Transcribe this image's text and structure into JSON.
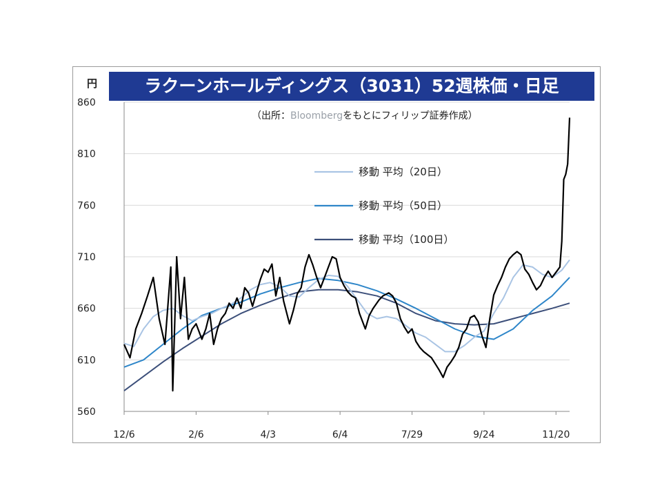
{
  "title": "ラクーンホールディングス（3031）52週株価・日足",
  "unit_label": "円",
  "source": {
    "prefix": "（出所：",
    "name": "Bloomberg",
    "suffix": "をもとにフィリップ証券作成）"
  },
  "colors": {
    "title_bg": "#1f3a93",
    "price": "#000000",
    "ma20": "#a9c4e4",
    "ma50": "#2e86c9",
    "ma100": "#3c4f7a",
    "grid": "#d9d9d9"
  },
  "chart_data": {
    "type": "line",
    "ylim": [
      560,
      860
    ],
    "yticks": [
      "860",
      "810",
      "760",
      "710",
      "660",
      "610",
      "560"
    ],
    "xticks": [
      "12/6",
      "2/6",
      "4/3",
      "6/4",
      "7/29",
      "9/24",
      "11/20"
    ],
    "grid": true,
    "legend_position": "right",
    "series": [
      {
        "name": "",
        "key": "price",
        "values": [
          [
            0,
            625
          ],
          [
            3,
            612
          ],
          [
            6,
            640
          ],
          [
            9,
            655
          ],
          [
            12,
            672
          ],
          [
            15,
            690
          ],
          [
            18,
            650
          ],
          [
            21,
            625
          ],
          [
            24,
            700
          ],
          [
            25,
            580
          ],
          [
            27,
            710
          ],
          [
            29,
            650
          ],
          [
            31,
            690
          ],
          [
            33,
            630
          ],
          [
            35,
            640
          ],
          [
            37,
            645
          ],
          [
            40,
            630
          ],
          [
            42,
            640
          ],
          [
            44,
            655
          ],
          [
            46,
            625
          ],
          [
            48,
            640
          ],
          [
            50,
            650
          ],
          [
            52,
            655
          ],
          [
            54,
            665
          ],
          [
            56,
            660
          ],
          [
            58,
            670
          ],
          [
            60,
            660
          ],
          [
            62,
            680
          ],
          [
            64,
            675
          ],
          [
            66,
            662
          ],
          [
            68,
            675
          ],
          [
            70,
            688
          ],
          [
            72,
            698
          ],
          [
            74,
            695
          ],
          [
            76,
            703
          ],
          [
            78,
            672
          ],
          [
            80,
            690
          ],
          [
            82,
            667
          ],
          [
            85,
            645
          ],
          [
            87,
            658
          ],
          [
            89,
            674
          ],
          [
            91,
            680
          ],
          [
            93,
            700
          ],
          [
            95,
            712
          ],
          [
            97,
            702
          ],
          [
            99,
            690
          ],
          [
            101,
            680
          ],
          [
            103,
            690
          ],
          [
            105,
            700
          ],
          [
            107,
            710
          ],
          [
            109,
            708
          ],
          [
            111,
            690
          ],
          [
            113,
            682
          ],
          [
            115,
            676
          ],
          [
            117,
            672
          ],
          [
            119,
            670
          ],
          [
            121,
            655
          ],
          [
            124,
            640
          ],
          [
            126,
            653
          ],
          [
            128,
            660
          ],
          [
            131,
            668
          ],
          [
            133,
            672
          ],
          [
            136,
            675
          ],
          [
            138,
            672
          ],
          [
            140,
            665
          ],
          [
            142,
            650
          ],
          [
            144,
            642
          ],
          [
            146,
            636
          ],
          [
            148,
            640
          ],
          [
            150,
            628
          ],
          [
            152,
            622
          ],
          [
            154,
            618
          ],
          [
            156,
            615
          ],
          [
            158,
            612
          ],
          [
            160,
            606
          ],
          [
            162,
            600
          ],
          [
            164,
            593
          ],
          [
            166,
            603
          ],
          [
            168,
            608
          ],
          [
            170,
            614
          ],
          [
            172,
            622
          ],
          [
            174,
            635
          ],
          [
            176,
            640
          ],
          [
            178,
            651
          ],
          [
            180,
            653
          ],
          [
            182,
            647
          ],
          [
            184,
            633
          ],
          [
            186,
            622
          ],
          [
            188,
            650
          ],
          [
            190,
            673
          ],
          [
            192,
            682
          ],
          [
            194,
            690
          ],
          [
            196,
            700
          ],
          [
            198,
            708
          ],
          [
            200,
            712
          ],
          [
            202,
            715
          ],
          [
            204,
            712
          ],
          [
            206,
            698
          ],
          [
            208,
            693
          ],
          [
            210,
            685
          ],
          [
            212,
            678
          ],
          [
            214,
            682
          ],
          [
            216,
            690
          ],
          [
            218,
            696
          ],
          [
            220,
            690
          ],
          [
            222,
            695
          ],
          [
            224,
            700
          ],
          [
            225,
            725
          ],
          [
            226,
            785
          ],
          [
            227,
            790
          ],
          [
            228,
            800
          ],
          [
            229,
            845
          ]
        ]
      },
      {
        "name": "移動 平均（20日）",
        "key": "ma20",
        "values": [
          [
            0,
            626
          ],
          [
            5,
            623
          ],
          [
            10,
            640
          ],
          [
            15,
            652
          ],
          [
            20,
            658
          ],
          [
            25,
            660
          ],
          [
            30,
            653
          ],
          [
            35,
            648
          ],
          [
            40,
            652
          ],
          [
            45,
            655
          ],
          [
            50,
            660
          ],
          [
            55,
            664
          ],
          [
            60,
            670
          ],
          [
            65,
            678
          ],
          [
            70,
            683
          ],
          [
            75,
            685
          ],
          [
            80,
            681
          ],
          [
            85,
            672
          ],
          [
            90,
            671
          ],
          [
            95,
            680
          ],
          [
            100,
            688
          ],
          [
            105,
            692
          ],
          [
            110,
            691
          ],
          [
            115,
            681
          ],
          [
            120,
            668
          ],
          [
            125,
            655
          ],
          [
            130,
            650
          ],
          [
            135,
            652
          ],
          [
            140,
            650
          ],
          [
            145,
            643
          ],
          [
            150,
            636
          ],
          [
            155,
            632
          ],
          [
            160,
            625
          ],
          [
            165,
            618
          ],
          [
            170,
            618
          ],
          [
            175,
            624
          ],
          [
            180,
            632
          ],
          [
            185,
            638
          ],
          [
            190,
            655
          ],
          [
            195,
            670
          ],
          [
            200,
            690
          ],
          [
            205,
            702
          ],
          [
            210,
            700
          ],
          [
            215,
            693
          ],
          [
            220,
            690
          ],
          [
            225,
            697
          ],
          [
            229,
            707
          ]
        ]
      },
      {
        "name": "移動 平均（50日）",
        "key": "ma50",
        "values": [
          [
            0,
            603
          ],
          [
            10,
            610
          ],
          [
            20,
            625
          ],
          [
            30,
            640
          ],
          [
            40,
            653
          ],
          [
            50,
            660
          ],
          [
            60,
            666
          ],
          [
            70,
            674
          ],
          [
            80,
            680
          ],
          [
            90,
            685
          ],
          [
            100,
            689
          ],
          [
            110,
            687
          ],
          [
            120,
            683
          ],
          [
            130,
            677
          ],
          [
            140,
            669
          ],
          [
            150,
            660
          ],
          [
            160,
            650
          ],
          [
            170,
            640
          ],
          [
            180,
            633
          ],
          [
            190,
            630
          ],
          [
            200,
            640
          ],
          [
            210,
            658
          ],
          [
            220,
            672
          ],
          [
            229,
            690
          ]
        ]
      },
      {
        "name": "移動 平均（100日）",
        "key": "ma100",
        "values": [
          [
            0,
            580
          ],
          [
            10,
            594
          ],
          [
            20,
            608
          ],
          [
            30,
            621
          ],
          [
            40,
            633
          ],
          [
            50,
            645
          ],
          [
            60,
            655
          ],
          [
            70,
            663
          ],
          [
            80,
            670
          ],
          [
            90,
            676
          ],
          [
            100,
            678
          ],
          [
            110,
            678
          ],
          [
            120,
            676
          ],
          [
            130,
            672
          ],
          [
            140,
            665
          ],
          [
            150,
            655
          ],
          [
            160,
            648
          ],
          [
            170,
            645
          ],
          [
            180,
            644
          ],
          [
            190,
            645
          ],
          [
            200,
            650
          ],
          [
            210,
            655
          ],
          [
            220,
            660
          ],
          [
            229,
            665
          ]
        ]
      }
    ]
  }
}
